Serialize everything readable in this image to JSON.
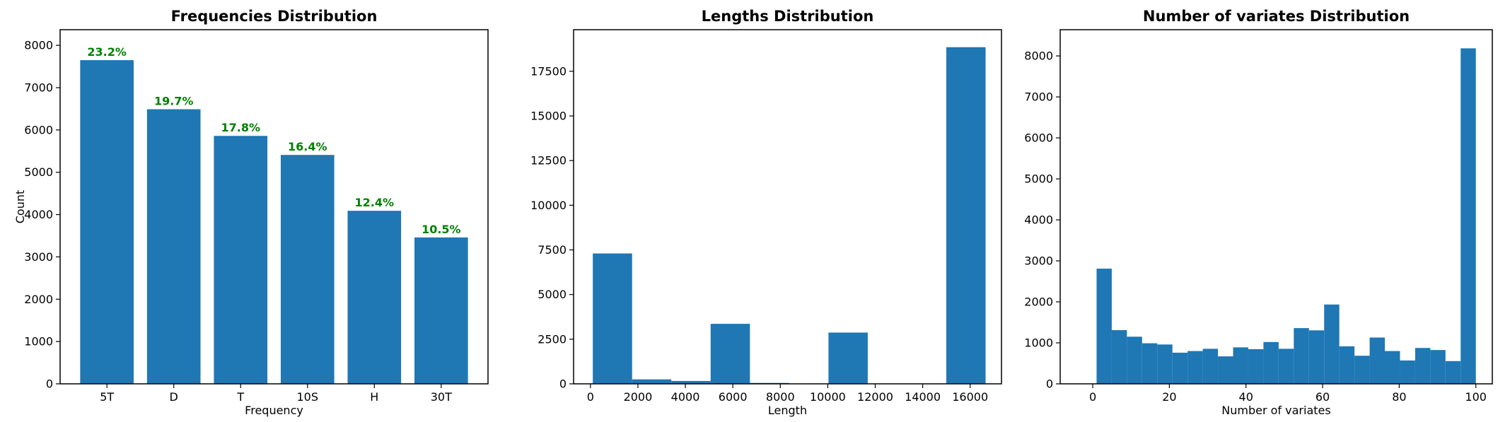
{
  "figure": {
    "background": "#ffffff",
    "bar_color": "#1f77b4",
    "annotation_color": "#008000",
    "spine_color": "#000000"
  },
  "chart_data": [
    {
      "type": "bar",
      "title": "Frequencies Distribution",
      "xlabel": "Frequency",
      "ylabel": "Count",
      "categories": [
        "5T",
        "D",
        "T",
        "10S",
        "H",
        "30T"
      ],
      "values": [
        7650,
        6490,
        5860,
        5410,
        4090,
        3460
      ],
      "bar_labels": [
        "23.2%",
        "19.7%",
        "17.8%",
        "16.4%",
        "12.4%",
        "10.5%"
      ],
      "bar_label_color": "#008000",
      "bar_color": "#1f77b4",
      "bar_width": 0.8,
      "xlim": [
        -0.7,
        5.7
      ],
      "ylim": [
        0,
        8370
      ],
      "yticks": [
        0,
        1000,
        2000,
        3000,
        4000,
        5000,
        6000,
        7000,
        8000
      ],
      "grid": false,
      "legend": null
    },
    {
      "type": "histogram",
      "title": "Lengths Distribution",
      "xlabel": "Length",
      "ylabel": "",
      "bin_edges": [
        100,
        1755,
        3410,
        5065,
        6720,
        8375,
        10030,
        11685,
        13340,
        14995,
        16650
      ],
      "counts": [
        7300,
        250,
        160,
        3360,
        50,
        0,
        2870,
        0,
        0,
        18850
      ],
      "bar_color": "#1f77b4",
      "xlim": [
        -710,
        17320
      ],
      "ylim": [
        0,
        19830
      ],
      "xticks": [
        0,
        2000,
        4000,
        6000,
        8000,
        10000,
        12000,
        14000,
        16000
      ],
      "yticks": [
        0,
        2500,
        5000,
        7500,
        10000,
        12500,
        15000,
        17500
      ],
      "grid": false,
      "legend": null
    },
    {
      "type": "histogram",
      "title": "Number of variates Distribution",
      "xlabel": "Number of variates",
      "ylabel": "",
      "bin_edges": [
        1,
        4.96,
        8.92,
        12.88,
        16.84,
        20.8,
        24.76,
        28.72,
        32.68,
        36.64,
        40.6,
        44.56,
        48.52,
        52.48,
        56.44,
        60.4,
        64.36,
        68.32,
        72.28,
        76.24,
        80.2,
        84.16,
        88.12,
        92.08,
        96.04,
        100
      ],
      "counts": [
        2810,
        1310,
        1150,
        990,
        960,
        760,
        800,
        855,
        670,
        890,
        845,
        1020,
        855,
        1360,
        1305,
        1935,
        915,
        685,
        1130,
        800,
        570,
        875,
        825,
        555,
        8185
      ],
      "bar_color": "#1f77b4",
      "xlim": [
        -8.5,
        104.3
      ],
      "ylim": [
        0,
        8640
      ],
      "xticks": [
        0,
        20,
        40,
        60,
        80,
        100
      ],
      "yticks": [
        0,
        1000,
        2000,
        3000,
        4000,
        5000,
        6000,
        7000,
        8000
      ],
      "grid": false,
      "legend": null
    }
  ]
}
